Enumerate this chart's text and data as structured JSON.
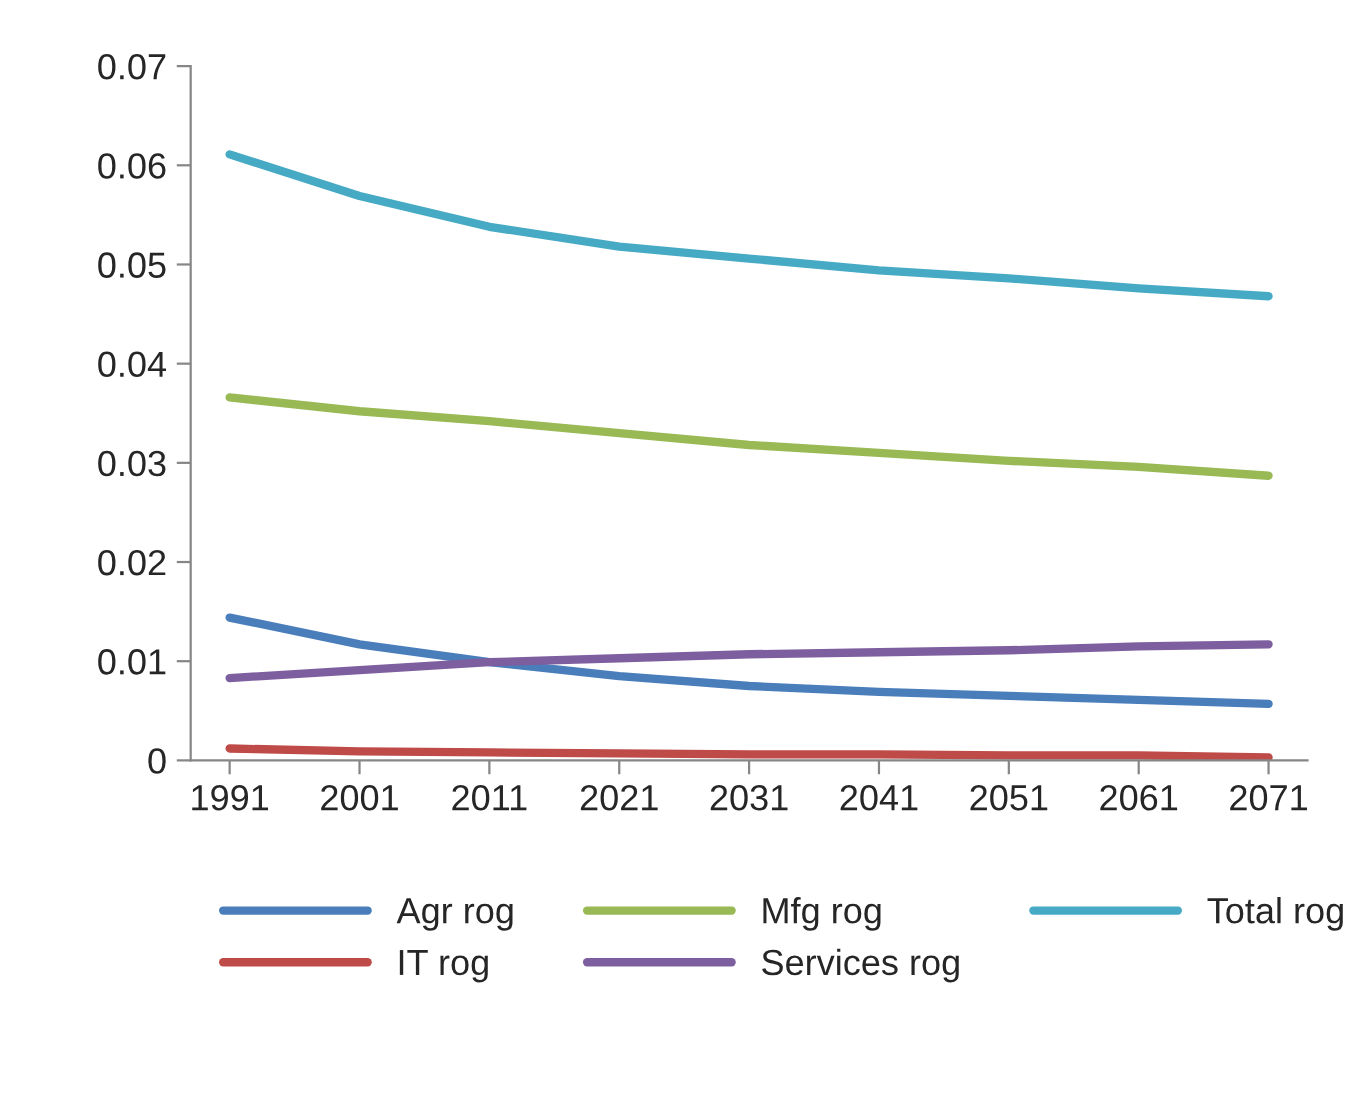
{
  "chart_data": {
    "type": "line",
    "categories": [
      "1991",
      "2001",
      "2011",
      "2021",
      "2031",
      "2041",
      "2051",
      "2061",
      "2071"
    ],
    "series": [
      {
        "name": "Agr rog",
        "color": "#4a7ebb",
        "values": [
          0.0144,
          0.0117,
          0.0099,
          0.0085,
          0.0075,
          0.0069,
          0.0065,
          0.0061,
          0.0057
        ]
      },
      {
        "name": "IT rog",
        "color": "#be4b48",
        "values": [
          0.0012,
          0.0009,
          0.0008,
          0.0007,
          0.0006,
          0.0006,
          0.0005,
          0.0005,
          0.0003
        ]
      },
      {
        "name": "Mfg rog",
        "color": "#98b954",
        "values": [
          0.0366,
          0.0352,
          0.0342,
          0.033,
          0.0318,
          0.031,
          0.0302,
          0.0296,
          0.0287
        ]
      },
      {
        "name": "Services rog",
        "color": "#7d5fa0",
        "values": [
          0.0083,
          0.0091,
          0.0099,
          0.0103,
          0.0107,
          0.0109,
          0.0111,
          0.0115,
          0.0117
        ]
      },
      {
        "name": "Total rog",
        "color": "#46aac5",
        "values": [
          0.0611,
          0.0569,
          0.0538,
          0.0518,
          0.0506,
          0.0494,
          0.0486,
          0.0476,
          0.0468
        ]
      }
    ],
    "ylim": [
      0,
      0.07
    ],
    "yticks": [
      0,
      0.01,
      0.02,
      0.03,
      0.04,
      0.05,
      0.06,
      0.07
    ],
    "legend": "bottom",
    "grid": false,
    "marker": "none",
    "line_style": "solid"
  }
}
